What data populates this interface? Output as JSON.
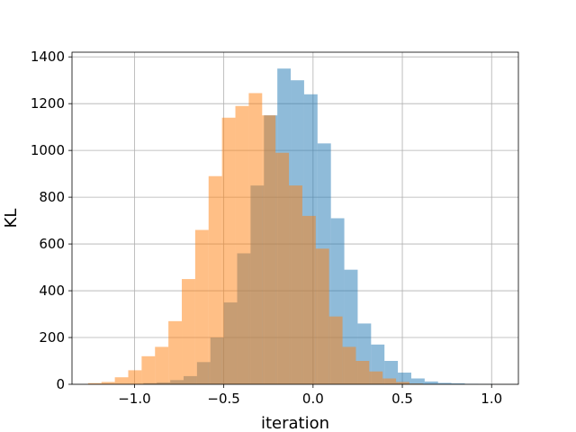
{
  "chart_data": {
    "type": "bar",
    "title": "",
    "xlabel": "iteration",
    "ylabel": "KL",
    "xlim": [
      -1.35,
      1.15
    ],
    "ylim": [
      0,
      1420
    ],
    "xticks": [
      -1.0,
      -0.5,
      0.0,
      0.5,
      1.0
    ],
    "xtick_labels": [
      "−1.0",
      "−0.5",
      "0.0",
      "0.5",
      "1.0"
    ],
    "yticks": [
      0,
      200,
      400,
      600,
      800,
      1000,
      1200,
      1400
    ],
    "ytick_labels": [
      "0",
      "200",
      "400",
      "600",
      "800",
      "1000",
      "1200",
      "1400"
    ],
    "grid": true,
    "series": [
      {
        "color": "#1f77b4",
        "opacity": 0.5,
        "bin_edges": [
          -0.95,
          -0.875,
          -0.8,
          -0.725,
          -0.65,
          -0.575,
          -0.5,
          -0.425,
          -0.35,
          -0.275,
          -0.2,
          -0.125,
          -0.05,
          0.025,
          0.1,
          0.175,
          0.25,
          0.325,
          0.4,
          0.475,
          0.55,
          0.625,
          0.7,
          0.775,
          0.85,
          0.925,
          1.0
        ],
        "values": [
          5,
          8,
          18,
          35,
          95,
          200,
          350,
          560,
          850,
          1150,
          1350,
          1300,
          1240,
          1030,
          710,
          490,
          260,
          170,
          100,
          50,
          25,
          12,
          6,
          4,
          2,
          1
        ]
      },
      {
        "color": "#ff7f0e",
        "opacity": 0.5,
        "bin_edges": [
          -1.26,
          -1.185,
          -1.11,
          -1.035,
          -0.96,
          -0.885,
          -0.81,
          -0.735,
          -0.66,
          -0.585,
          -0.51,
          -0.435,
          -0.36,
          -0.285,
          -0.21,
          -0.135,
          -0.06,
          0.015,
          0.09,
          0.165,
          0.24,
          0.315,
          0.39,
          0.465,
          0.54,
          0.615
        ],
        "values": [
          5,
          10,
          30,
          60,
          120,
          160,
          270,
          450,
          660,
          890,
          1140,
          1190,
          1245,
          1150,
          990,
          850,
          720,
          580,
          290,
          160,
          100,
          55,
          25,
          10,
          3
        ]
      }
    ]
  }
}
